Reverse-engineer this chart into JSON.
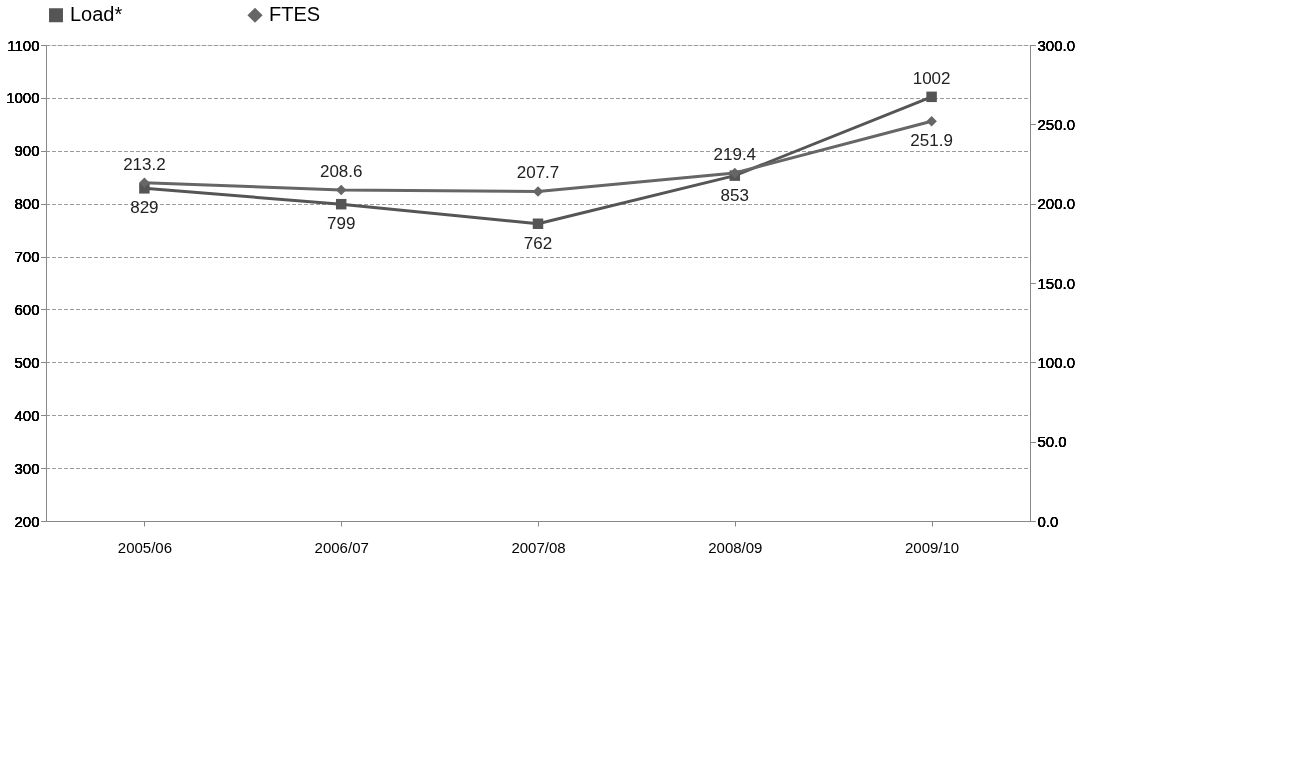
{
  "chart_data": {
    "type": "line",
    "categories": [
      "2005/06",
      "2006/07",
      "2007/08",
      "2008/09",
      "2009/10"
    ],
    "series": [
      {
        "name": "Load*",
        "color": "#555555",
        "marker": "square",
        "axis": "y",
        "values": [
          829,
          799,
          762,
          853,
          1002
        ]
      },
      {
        "name": "FTES",
        "color": "#666666",
        "marker": "diamond",
        "axis": "y2",
        "values": [
          213.2,
          208.6,
          207.7,
          219.4,
          251.9
        ]
      }
    ],
    "ylim": [
      200,
      1100
    ],
    "yticks": [
      200,
      300,
      400,
      500,
      600,
      700,
      800,
      900,
      1000,
      1100
    ],
    "y2lim": [
      0,
      300
    ],
    "y2ticks": [
      {
        "value": 0,
        "label": "0.0"
      },
      {
        "value": 50,
        "label": "50.0"
      },
      {
        "value": 100,
        "label": "100.0"
      },
      {
        "value": 150,
        "label": "150.0"
      },
      {
        "value": 200,
        "label": "200.0"
      },
      {
        "value": 250,
        "label": "250.0"
      },
      {
        "value": 300,
        "label": "300.0"
      }
    ],
    "grid": "y",
    "legend": "top",
    "data_labels": true,
    "line_style": "solid"
  }
}
